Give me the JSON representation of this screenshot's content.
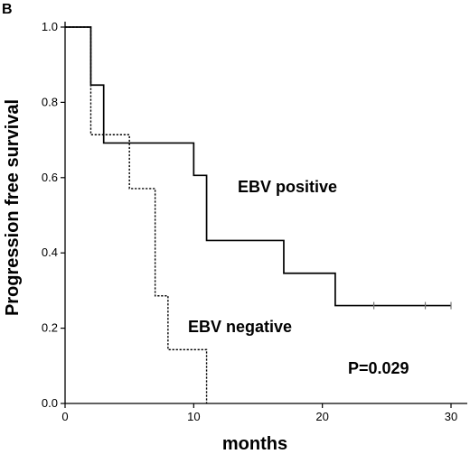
{
  "panel_label": "B",
  "chart_data": {
    "type": "line",
    "step": true,
    "xlabel": "months",
    "ylabel": "Progression free survival",
    "xlim": [
      0,
      30
    ],
    "ylim": [
      0,
      1.0
    ],
    "xticks": [
      0,
      10,
      20,
      30
    ],
    "xtick_labels": [
      "0",
      "10",
      "20",
      "30"
    ],
    "yticks": [
      0.0,
      0.2,
      0.4,
      0.6,
      0.8,
      1.0
    ],
    "ytick_labels": [
      "0.0",
      "0.2",
      "0.4",
      "0.6",
      "0.8",
      "1.0"
    ],
    "grid": false,
    "series": [
      {
        "name": "EBV positive",
        "style": "solid",
        "color": "#000000",
        "x": [
          0,
          2,
          3,
          10,
          11,
          17,
          21,
          30
        ],
        "y": [
          1.0,
          0.846,
          0.692,
          0.606,
          0.433,
          0.346,
          0.26,
          0.26
        ],
        "censored": [
          {
            "x": 24,
            "y": 0.26
          },
          {
            "x": 28,
            "y": 0.26
          },
          {
            "x": 30,
            "y": 0.26
          }
        ]
      },
      {
        "name": "EBV negative",
        "style": "dotted",
        "color": "#000000",
        "x": [
          0,
          2,
          5,
          7,
          8,
          11
        ],
        "y": [
          1.0,
          0.714,
          0.571,
          0.286,
          0.143,
          0.0
        ],
        "censored": []
      }
    ],
    "annotations": [
      {
        "text": "EBV positive"
      },
      {
        "text": "EBV negative"
      },
      {
        "text": "P=0.029"
      }
    ]
  }
}
